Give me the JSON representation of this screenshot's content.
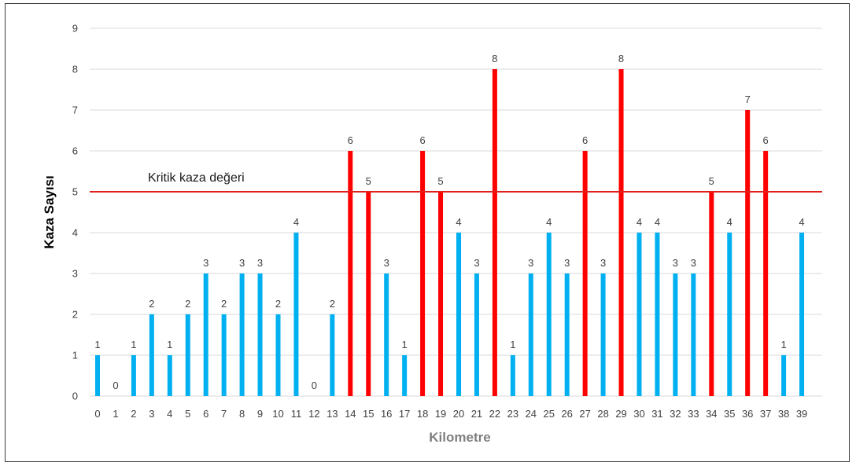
{
  "chart_data": {
    "type": "bar",
    "title": "",
    "xlabel": "Kilometre",
    "ylabel": "Kaza Sayısı",
    "ylim": [
      0,
      9
    ],
    "yticks": [
      0,
      1,
      2,
      3,
      4,
      5,
      6,
      7,
      8,
      9
    ],
    "grid": true,
    "categories": [
      "0",
      "1",
      "2",
      "3",
      "4",
      "5",
      "6",
      "7",
      "8",
      "9",
      "10",
      "11",
      "12",
      "13",
      "14",
      "15",
      "16",
      "17",
      "18",
      "19",
      "20",
      "21",
      "22",
      "23",
      "24",
      "25",
      "26",
      "27",
      "28",
      "29",
      "30",
      "31",
      "32",
      "33",
      "34",
      "35",
      "36",
      "37",
      "38",
      "39"
    ],
    "values": [
      1,
      0,
      1,
      2,
      1,
      2,
      3,
      2,
      3,
      3,
      2,
      4,
      0,
      2,
      6,
      5,
      3,
      1,
      6,
      5,
      4,
      3,
      8,
      1,
      3,
      4,
      3,
      6,
      3,
      8,
      4,
      4,
      3,
      3,
      5,
      4,
      7,
      6,
      1,
      4
    ],
    "threshold": {
      "value": 5,
      "label": "Kritik kaza değeri"
    },
    "colors": {
      "normal": "#00B0F0",
      "critical": "#FF0000",
      "threshold_line": "#E0201B",
      "grid": "#D9D9D9",
      "axis_title": "#7F7F7F"
    }
  }
}
